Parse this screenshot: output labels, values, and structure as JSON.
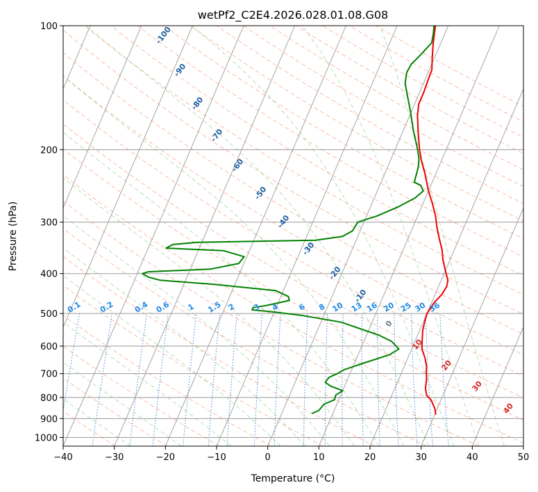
{
  "chart_data": {
    "type": "line",
    "title": "wetPf2_C2E4.2026.028.01.08.G08",
    "xlabel": "Temperature (°C)",
    "ylabel": "Pressure (hPa)",
    "xlim": [
      -40,
      50
    ],
    "ylim": [
      1050,
      100
    ],
    "y_scale": "log",
    "grid": true,
    "x_ticks": [
      -40,
      -30,
      -20,
      -10,
      0,
      10,
      20,
      30,
      40,
      50
    ],
    "y_ticks": [
      100,
      200,
      300,
      400,
      500,
      600,
      700,
      800,
      900,
      1000
    ],
    "series": [
      {
        "color": "#ee0000",
        "points": [
          {
            "t": 30.2,
            "p": 880
          },
          {
            "t": 29.5,
            "p": 850
          },
          {
            "t": 28.0,
            "p": 810
          },
          {
            "t": 26.8,
            "p": 790
          },
          {
            "t": 26.0,
            "p": 760
          },
          {
            "t": 25.4,
            "p": 720
          },
          {
            "t": 24.7,
            "p": 690
          },
          {
            "t": 24.3,
            "p": 670
          },
          {
            "t": 23.3,
            "p": 640
          },
          {
            "t": 22.0,
            "p": 610
          },
          {
            "t": 21.3,
            "p": 580
          },
          {
            "t": 20.6,
            "p": 550
          },
          {
            "t": 20.2,
            "p": 520
          },
          {
            "t": 20.0,
            "p": 500
          },
          {
            "t": 20.5,
            "p": 470
          },
          {
            "t": 21.3,
            "p": 450
          },
          {
            "t": 21.6,
            "p": 430
          },
          {
            "t": 21.3,
            "p": 415
          },
          {
            "t": 20.4,
            "p": 400
          },
          {
            "t": 19.5,
            "p": 385
          },
          {
            "t": 18.6,
            "p": 370
          },
          {
            "t": 17.6,
            "p": 350
          },
          {
            "t": 16.2,
            "p": 330
          },
          {
            "t": 14.8,
            "p": 310
          },
          {
            "t": 13.5,
            "p": 290
          },
          {
            "t": 11.8,
            "p": 270
          },
          {
            "t": 10.0,
            "p": 252
          },
          {
            "t": 7.8,
            "p": 228
          },
          {
            "t": 6.0,
            "p": 212
          },
          {
            "t": 4.8,
            "p": 200
          },
          {
            "t": 3.2,
            "p": 183
          },
          {
            "t": 1.5,
            "p": 165
          },
          {
            "t": 0.8,
            "p": 155
          },
          {
            "t": 0.8,
            "p": 145
          },
          {
            "t": 0.6,
            "p": 135
          },
          {
            "t": 0.5,
            "p": 128
          },
          {
            "t": -0.4,
            "p": 120
          },
          {
            "t": -1.4,
            "p": 111
          },
          {
            "t": -2.0,
            "p": 105
          },
          {
            "t": -2.5,
            "p": 100
          }
        ]
      },
      {
        "color": "#008000",
        "points": [
          {
            "t": 5.9,
            "p": 875
          },
          {
            "t": 7.0,
            "p": 860
          },
          {
            "t": 7.5,
            "p": 830
          },
          {
            "t": 9.2,
            "p": 810
          },
          {
            "t": 9.0,
            "p": 790
          },
          {
            "t": 10.0,
            "p": 770
          },
          {
            "t": 7.2,
            "p": 750
          },
          {
            "t": 5.9,
            "p": 735
          },
          {
            "t": 6.2,
            "p": 715
          },
          {
            "t": 7.5,
            "p": 700
          },
          {
            "t": 8.5,
            "p": 685
          },
          {
            "t": 11.8,
            "p": 660
          },
          {
            "t": 16.1,
            "p": 630
          },
          {
            "t": 17.5,
            "p": 610
          },
          {
            "t": 15.5,
            "p": 585
          },
          {
            "t": 12.5,
            "p": 565
          },
          {
            "t": 4.0,
            "p": 525
          },
          {
            "t": -4.5,
            "p": 505
          },
          {
            "t": -10.0,
            "p": 496
          },
          {
            "t": -14.5,
            "p": 490
          },
          {
            "t": -14.5,
            "p": 484
          },
          {
            "t": -12.0,
            "p": 478
          },
          {
            "t": -8.0,
            "p": 465
          },
          {
            "t": -8.5,
            "p": 455
          },
          {
            "t": -11.5,
            "p": 440
          },
          {
            "t": -24.0,
            "p": 425
          },
          {
            "t": -35.0,
            "p": 415
          },
          {
            "t": -37.5,
            "p": 408
          },
          {
            "t": -39.0,
            "p": 400
          },
          {
            "t": -38.0,
            "p": 396
          },
          {
            "t": -26.0,
            "p": 390
          },
          {
            "t": -21.0,
            "p": 378
          },
          {
            "t": -20.5,
            "p": 364
          },
          {
            "t": -25.0,
            "p": 352
          },
          {
            "t": -36.5,
            "p": 347
          },
          {
            "t": -35.5,
            "p": 340
          },
          {
            "t": -31.0,
            "p": 336
          },
          {
            "t": -8.0,
            "p": 332
          },
          {
            "t": -3.0,
            "p": 325
          },
          {
            "t": -1.5,
            "p": 315
          },
          {
            "t": -1.2,
            "p": 300
          },
          {
            "t": 2.0,
            "p": 290
          },
          {
            "t": 5.5,
            "p": 275
          },
          {
            "t": 8.0,
            "p": 262
          },
          {
            "t": 9.0,
            "p": 252
          },
          {
            "t": 8.0,
            "p": 244
          },
          {
            "t": 6.5,
            "p": 240
          },
          {
            "t": 6.3,
            "p": 232
          },
          {
            "t": 6.0,
            "p": 220
          },
          {
            "t": 5.4,
            "p": 210
          },
          {
            "t": 4.2,
            "p": 198
          },
          {
            "t": 2.0,
            "p": 180
          },
          {
            "t": 0.0,
            "p": 163
          },
          {
            "t": -1.8,
            "p": 150
          },
          {
            "t": -3.6,
            "p": 138
          },
          {
            "t": -4.2,
            "p": 130
          },
          {
            "t": -4.0,
            "p": 124
          },
          {
            "t": -3.0,
            "p": 118
          },
          {
            "t": -1.8,
            "p": 110
          },
          {
            "t": -2.3,
            "p": 104
          },
          {
            "t": -2.8,
            "p": 100
          }
        ]
      }
    ],
    "background_lines": {
      "isotherm_spacing": 10,
      "dry_adiabats_theta_K": [
        230,
        240,
        250,
        260,
        270,
        280,
        290,
        300,
        310,
        320,
        330,
        340,
        350,
        360,
        370,
        380,
        390,
        400,
        410,
        420,
        430,
        440,
        450,
        460,
        470,
        480,
        490,
        500
      ],
      "moist_adiabats_C": [
        -30,
        -20,
        -10,
        0,
        5,
        10,
        15,
        20,
        25,
        30,
        35,
        40,
        45
      ],
      "mixing_ratio_labels": [
        "0.1",
        "0.2",
        "0.4",
        "0.6",
        "1",
        "1.5",
        "2",
        "3",
        "4",
        "6",
        "8",
        "10",
        "13",
        "16",
        "20",
        "25",
        "30",
        "36"
      ],
      "mixing_ratio_values": [
        0.1,
        0.2,
        0.4,
        0.6,
        1,
        1.5,
        2,
        3,
        4,
        6,
        8,
        10,
        13,
        16,
        20,
        25,
        30,
        36
      ]
    },
    "annotations": {
      "blue_isotherm_labels": [
        "-100",
        "-90",
        "-80",
        "-70",
        "-60",
        "-50",
        "-40",
        "-30",
        "-20",
        "-10"
      ],
      "blue_isotherm_values": [
        -100,
        -90,
        -80,
        -70,
        -60,
        -50,
        -40,
        -30,
        -20,
        -10
      ],
      "zero_label": "0",
      "red_isotherm_labels": [
        "10",
        "20",
        "30",
        "40"
      ],
      "red_isotherm_values": [
        10,
        20,
        30,
        40
      ]
    }
  }
}
